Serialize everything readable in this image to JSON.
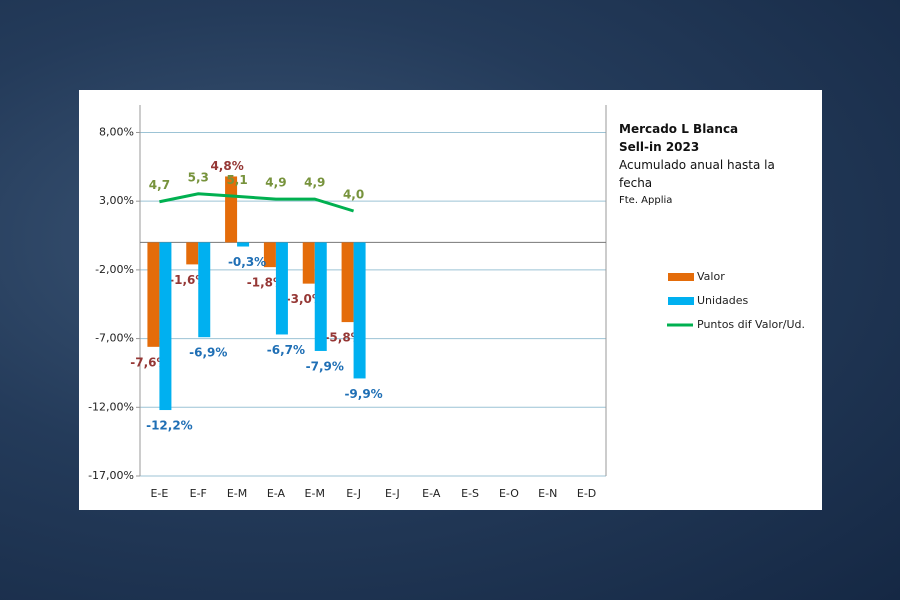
{
  "chart_data": {
    "type": "bar",
    "title": "Mercado L Blanca",
    "subtitle": "Sell-in 2023",
    "description": "Acumulado anual hasta la fecha",
    "source": "Fte. Applia",
    "categories": [
      "E-E",
      "E-F",
      "E-M",
      "E-A",
      "E-M",
      "E-J",
      "E-J",
      "E-A",
      "E-S",
      "E-O",
      "E-N",
      "E-D"
    ],
    "ylim": [
      -17,
      10
    ],
    "yticks": [
      {
        "value": -17,
        "label": "-17,00%"
      },
      {
        "value": -12,
        "label": "-12,00%"
      },
      {
        "value": -7,
        "label": "-7,00%"
      },
      {
        "value": -2,
        "label": "-2,00%"
      },
      {
        "value": 3,
        "label": "3,00%"
      },
      {
        "value": 8,
        "label": "8,00%"
      }
    ],
    "y2lim": [
      -16,
      12
    ],
    "grid": true,
    "series": [
      {
        "name": "Valor",
        "type": "bar",
        "color": "#e46c0a",
        "label_color": "#953735",
        "values": [
          -7.6,
          -1.6,
          4.8,
          -1.8,
          -3.0,
          -5.8,
          null,
          null,
          null,
          null,
          null,
          null
        ],
        "value_labels": [
          "-7,6%",
          "-1,6%",
          "4,8%",
          "-1,8%",
          "-3,0%",
          "-5,8%",
          null,
          null,
          null,
          null,
          null,
          null
        ]
      },
      {
        "name": "Unidades",
        "type": "bar",
        "color": "#00b0f0",
        "label_color": "#1f6fb5",
        "values": [
          -12.2,
          -6.9,
          -0.3,
          -6.7,
          -7.9,
          -9.9,
          null,
          null,
          null,
          null,
          null,
          null
        ],
        "value_labels": [
          "-12,2%",
          "-6,9%",
          "-0,3%",
          "-6,7%",
          "-7,9%",
          "-9,9%",
          null,
          null,
          null,
          null,
          null,
          null
        ]
      },
      {
        "name": "Puntos dif Valor/Ud.",
        "type": "line",
        "axis": "y2",
        "color": "#00b050",
        "label_color": "#77933c",
        "values": [
          4.7,
          5.3,
          5.1,
          4.9,
          4.9,
          4.0,
          null,
          null,
          null,
          null,
          null,
          null
        ],
        "value_labels": [
          "4,7",
          "5,3",
          "5,1",
          "4,9",
          "4,9",
          "4,0",
          null,
          null,
          null,
          null,
          null,
          null
        ]
      }
    ]
  }
}
